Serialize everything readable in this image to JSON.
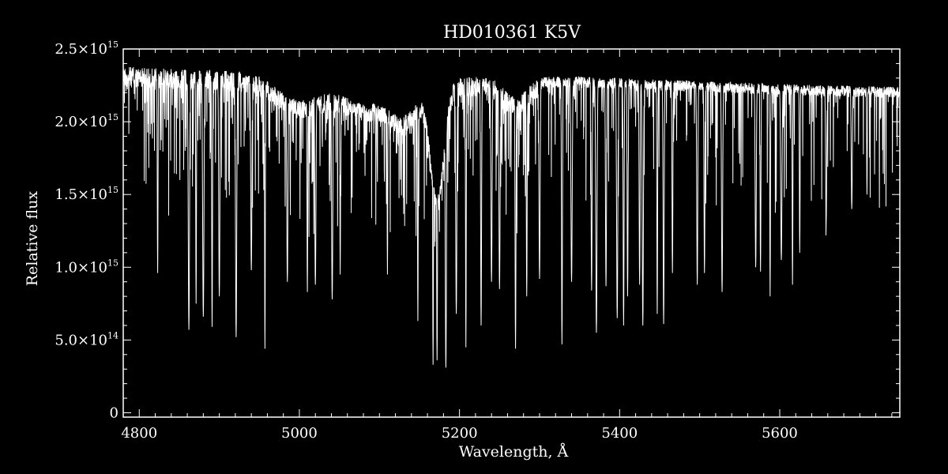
{
  "colors": {
    "background": "#000000",
    "foreground": "#ffffff"
  },
  "chart_data": {
    "type": "line",
    "title": "HD010361  K5V",
    "xlabel": "Wavelength, Å",
    "ylabel": "Relative flux",
    "xlim": [
      4780,
      5750
    ],
    "ylim": [
      -30000000000000.0,
      2500000000000000.0
    ],
    "grid": false,
    "x_ticks": [
      {
        "value": 4800,
        "label": "4800"
      },
      {
        "value": 5000,
        "label": "5000"
      },
      {
        "value": 5200,
        "label": "5200"
      },
      {
        "value": 5400,
        "label": "5400"
      },
      {
        "value": 5600,
        "label": "5600"
      }
    ],
    "y_ticks": [
      {
        "value": 0,
        "label": "0"
      },
      {
        "value": 500000000000000.0,
        "label": "5.0×10",
        "exp": "14"
      },
      {
        "value": 1000000000000000.0,
        "label": "1.0×10",
        "exp": "15"
      },
      {
        "value": 1500000000000000.0,
        "label": "1.5×10",
        "exp": "15"
      },
      {
        "value": 2000000000000000.0,
        "label": "2.0×10",
        "exp": "15"
      },
      {
        "value": 2500000000000000.0,
        "label": "2.5×10",
        "exp": "15"
      }
    ],
    "series": [
      {
        "continuum": [
          [
            4780,
            2380000000000000.0
          ],
          [
            4850,
            2360000000000000.0
          ],
          [
            4950,
            2350000000000000.0
          ],
          [
            5050,
            2330000000000000.0
          ],
          [
            5150,
            2300000000000000.0
          ],
          [
            5250,
            2310000000000000.0
          ],
          [
            5350,
            2310000000000000.0
          ],
          [
            5450,
            2290000000000000.0
          ],
          [
            5550,
            2270000000000000.0
          ],
          [
            5650,
            2250000000000000.0
          ],
          [
            5750,
            2240000000000000.0
          ]
        ],
        "depressions": [
          [
            5000,
            0.08,
            40
          ],
          [
            5080,
            0.08,
            40
          ],
          [
            5130,
            0.1,
            25
          ],
          [
            5172,
            0.35,
            12
          ],
          [
            5270,
            0.06,
            20
          ]
        ],
        "lines": [
          [
            4862,
            570000000000000.0
          ],
          [
            4880,
            660000000000000.0
          ],
          [
            4891,
            590000000000000.0
          ],
          [
            4921,
            520000000000000.0
          ],
          [
            4957,
            440000000000000.0
          ],
          [
            4871,
            750000000000000.0
          ],
          [
            4823,
            960000000000000.0
          ],
          [
            5041,
            780000000000000.0
          ],
          [
            5051,
            950000000000000.0
          ],
          [
            5010,
            830000000000000.0
          ],
          [
            5148,
            630000000000000.0
          ],
          [
            5167,
            330000000000000.0
          ],
          [
            5172,
            360000000000000.0
          ],
          [
            5183,
            310000000000000.0
          ],
          [
            5208,
            450000000000000.0
          ],
          [
            5227,
            600000000000000.0
          ],
          [
            5270,
            440000000000000.0
          ],
          [
            5284,
            800000000000000.0
          ],
          [
            5328,
            470000000000000.0
          ],
          [
            5371,
            550000000000000.0
          ],
          [
            5397,
            650000000000000.0
          ],
          [
            5405,
            600000000000000.0
          ],
          [
            5429,
            600000000000000.0
          ],
          [
            5447,
            680000000000000.0
          ],
          [
            5455,
            610000000000000.0
          ],
          [
            5497,
            880000000000000.0
          ],
          [
            5528,
            830000000000000.0
          ],
          [
            5576,
            970000000000000.0
          ],
          [
            5588,
            800000000000000.0
          ],
          [
            5616,
            880000000000000.0
          ],
          [
            4900,
            800000000000000.0
          ],
          [
            4940,
            980000000000000.0
          ],
          [
            4985,
            900000000000000.0
          ],
          [
            5020,
            880000000000000.0
          ],
          [
            5110,
            950000000000000.0
          ],
          [
            5196,
            680000000000000.0
          ],
          [
            5240,
            900000000000000.0
          ],
          [
            5250,
            850000000000000.0
          ],
          [
            5300,
            920000000000000.0
          ],
          [
            5340,
            900000000000000.0
          ],
          [
            5365,
            840000000000000.0
          ],
          [
            5383,
            870000000000000.0
          ],
          [
            5410,
            800000000000000.0
          ],
          [
            5425,
            880000000000000.0
          ],
          [
            5466,
            960000000000000.0
          ],
          [
            5506,
            960000000000000.0
          ],
          [
            5570,
            1000000000000000.0
          ],
          [
            5602,
            1050000000000000.0
          ],
          [
            5625,
            1100000000000000.0
          ],
          [
            5658,
            1300000000000000.0
          ],
          [
            5690,
            1400000000000000.0
          ],
          [
            5709,
            1500000000000000.0
          ]
        ]
      }
    ]
  }
}
